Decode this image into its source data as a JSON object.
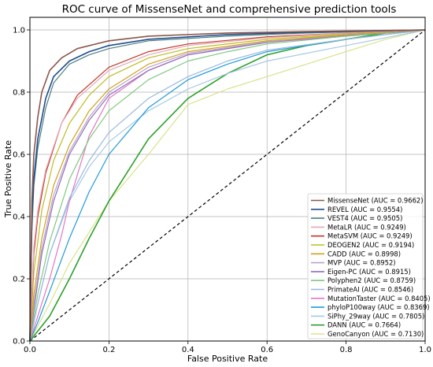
{
  "chart_data": {
    "type": "line",
    "title": "ROC curve of MissenseNet and comprehensive prediction tools",
    "xlabel": "False Positive Rate",
    "ylabel": "True Positive Rate",
    "xlim": [
      0.0,
      1.0
    ],
    "ylim": [
      0.0,
      1.0
    ],
    "xticks": [
      "0.0",
      "0.2",
      "0.4",
      "0.6",
      "0.8",
      "1.0"
    ],
    "yticks": [
      "0.0",
      "0.2",
      "0.4",
      "0.6",
      "0.8",
      "1.0"
    ],
    "grid": true,
    "legend_position": "lower-right",
    "diagonal_reference": true,
    "series": [
      {
        "name": "MissenseNet (AUC = 0.9662)",
        "color": "#8c564b",
        "linewidth": 1.6,
        "x": [
          0,
          0.005,
          0.01,
          0.02,
          0.03,
          0.05,
          0.08,
          0.12,
          0.2,
          0.3,
          0.5,
          0.7,
          1.0
        ],
        "y": [
          0,
          0.45,
          0.6,
          0.72,
          0.8,
          0.87,
          0.91,
          0.94,
          0.965,
          0.98,
          0.99,
          0.995,
          1.0
        ]
      },
      {
        "name": "REVEL (AUC = 0.9554)",
        "color": "#1f4e8c",
        "linewidth": 1.6,
        "x": [
          0,
          0.005,
          0.01,
          0.02,
          0.04,
          0.06,
          0.1,
          0.15,
          0.2,
          0.3,
          0.5,
          0.7,
          1.0
        ],
        "y": [
          0,
          0.4,
          0.52,
          0.65,
          0.78,
          0.85,
          0.9,
          0.93,
          0.95,
          0.97,
          0.985,
          0.993,
          1.0
        ]
      },
      {
        "name": "VEST4 (AUC = 0.9505)",
        "color": "#4f7f7f",
        "linewidth": 1.2,
        "x": [
          0,
          0.005,
          0.01,
          0.02,
          0.04,
          0.06,
          0.1,
          0.15,
          0.2,
          0.3,
          0.5,
          0.7,
          1.0
        ],
        "y": [
          0,
          0.35,
          0.5,
          0.62,
          0.75,
          0.83,
          0.89,
          0.92,
          0.94,
          0.965,
          0.98,
          0.99,
          1.0
        ]
      },
      {
        "name": "MetaLR (AUC = 0.9249)",
        "color": "#e6a9b8",
        "linewidth": 1.2,
        "x": [
          0,
          0.01,
          0.02,
          0.04,
          0.08,
          0.12,
          0.2,
          0.3,
          0.4,
          0.6,
          0.8,
          1.0
        ],
        "y": [
          0,
          0.3,
          0.42,
          0.55,
          0.7,
          0.78,
          0.87,
          0.92,
          0.95,
          0.975,
          0.99,
          1.0
        ]
      },
      {
        "name": "MetaSVM (AUC = 0.9249)",
        "color": "#c0392b",
        "linewidth": 1.2,
        "x": [
          0,
          0.01,
          0.02,
          0.04,
          0.08,
          0.12,
          0.2,
          0.3,
          0.4,
          0.6,
          0.8,
          1.0
        ],
        "y": [
          0,
          0.28,
          0.4,
          0.54,
          0.7,
          0.79,
          0.88,
          0.93,
          0.955,
          0.978,
          0.99,
          1.0
        ]
      },
      {
        "name": "DEOGEN2 (AUC = 0.9194)",
        "color": "#bcbd22",
        "linewidth": 1.2,
        "x": [
          0,
          0.01,
          0.03,
          0.06,
          0.1,
          0.15,
          0.2,
          0.3,
          0.4,
          0.6,
          0.8,
          1.0
        ],
        "y": [
          0,
          0.22,
          0.42,
          0.58,
          0.7,
          0.79,
          0.85,
          0.91,
          0.94,
          0.97,
          0.988,
          1.0
        ]
      },
      {
        "name": "CADD (AUC = 0.8998)",
        "color": "#d4a017",
        "linewidth": 1.2,
        "x": [
          0,
          0.01,
          0.03,
          0.06,
          0.1,
          0.15,
          0.2,
          0.3,
          0.4,
          0.6,
          0.8,
          1.0
        ],
        "y": [
          0,
          0.15,
          0.33,
          0.5,
          0.63,
          0.74,
          0.81,
          0.89,
          0.93,
          0.965,
          0.985,
          1.0
        ]
      },
      {
        "name": "MVP (AUC = 0.8952)",
        "color": "#b7a6c8",
        "linewidth": 1.2,
        "x": [
          0,
          0.01,
          0.03,
          0.06,
          0.1,
          0.15,
          0.2,
          0.3,
          0.4,
          0.6,
          0.8,
          1.0
        ],
        "y": [
          0,
          0.12,
          0.3,
          0.47,
          0.61,
          0.72,
          0.8,
          0.88,
          0.925,
          0.962,
          0.984,
          1.0
        ]
      },
      {
        "name": "Eigen-PC (AUC = 0.8915)",
        "color": "#8e6bbf",
        "linewidth": 1.2,
        "x": [
          0,
          0.01,
          0.03,
          0.06,
          0.1,
          0.15,
          0.2,
          0.3,
          0.4,
          0.6,
          0.8,
          1.0
        ],
        "y": [
          0,
          0.1,
          0.28,
          0.45,
          0.6,
          0.71,
          0.79,
          0.87,
          0.92,
          0.96,
          0.983,
          1.0
        ]
      },
      {
        "name": "Polyphen2 (AUC = 0.8759)",
        "color": "#7fc97f",
        "linewidth": 1.2,
        "x": [
          0,
          0.02,
          0.05,
          0.1,
          0.15,
          0.2,
          0.3,
          0.4,
          0.5,
          0.6,
          0.8,
          1.0
        ],
        "y": [
          0,
          0.15,
          0.32,
          0.52,
          0.65,
          0.74,
          0.84,
          0.9,
          0.93,
          0.955,
          0.98,
          1.0
        ]
      },
      {
        "name": "PrimateAI (AUC = 0.8546)",
        "color": "#9ab8de",
        "linewidth": 1.2,
        "x": [
          0,
          0.02,
          0.05,
          0.1,
          0.15,
          0.2,
          0.3,
          0.4,
          0.5,
          0.6,
          0.8,
          1.0
        ],
        "y": [
          0,
          0.12,
          0.28,
          0.46,
          0.58,
          0.67,
          0.78,
          0.85,
          0.9,
          0.935,
          0.97,
          1.0
        ]
      },
      {
        "name": "MutationTaster (AUC = 0.8405)",
        "color": "#e377c2",
        "linewidth": 1.2,
        "x": [
          0,
          0.02,
          0.05,
          0.08,
          0.1,
          0.15,
          0.2,
          0.3,
          0.4,
          0.6,
          0.8,
          1.0
        ],
        "y": [
          0,
          0.08,
          0.2,
          0.34,
          0.45,
          0.66,
          0.78,
          0.87,
          0.92,
          0.96,
          0.98,
          1.0
        ]
      },
      {
        "name": "phyloP100way (AUC = 0.8369)",
        "color": "#1f9bd6",
        "linewidth": 1.2,
        "x": [
          0,
          0.02,
          0.05,
          0.1,
          0.15,
          0.2,
          0.3,
          0.4,
          0.5,
          0.6,
          0.8,
          1.0
        ],
        "y": [
          0,
          0.06,
          0.16,
          0.33,
          0.48,
          0.6,
          0.75,
          0.84,
          0.89,
          0.93,
          0.97,
          1.0
        ]
      },
      {
        "name": "SiPhy_29way (AUC = 0.7805)",
        "color": "#a6c8e6",
        "linewidth": 1.2,
        "x": [
          0,
          0.02,
          0.05,
          0.1,
          0.15,
          0.2,
          0.3,
          0.4,
          0.5,
          0.6,
          0.8,
          1.0
        ],
        "y": [
          0,
          0.12,
          0.28,
          0.45,
          0.56,
          0.64,
          0.74,
          0.81,
          0.86,
          0.9,
          0.95,
          1.0
        ]
      },
      {
        "name": "DANN (AUC = 0.7664)",
        "color": "#2ca02c",
        "linewidth": 1.6,
        "x": [
          0,
          0.05,
          0.1,
          0.15,
          0.2,
          0.3,
          0.4,
          0.5,
          0.6,
          0.7,
          0.8,
          0.9,
          1.0
        ],
        "y": [
          0,
          0.08,
          0.2,
          0.33,
          0.45,
          0.65,
          0.78,
          0.86,
          0.92,
          0.95,
          0.97,
          0.99,
          1.0
        ]
      },
      {
        "name": "GenoCanyon (AUC = 0.7130)",
        "color": "#d9e38a",
        "linewidth": 1.2,
        "x": [
          0,
          0.05,
          0.1,
          0.2,
          0.3,
          0.4,
          0.5,
          0.6,
          0.7,
          0.8,
          0.9,
          1.0
        ],
        "y": [
          0,
          0.12,
          0.25,
          0.45,
          0.6,
          0.76,
          0.81,
          0.85,
          0.89,
          0.93,
          0.97,
          1.0
        ]
      }
    ]
  }
}
